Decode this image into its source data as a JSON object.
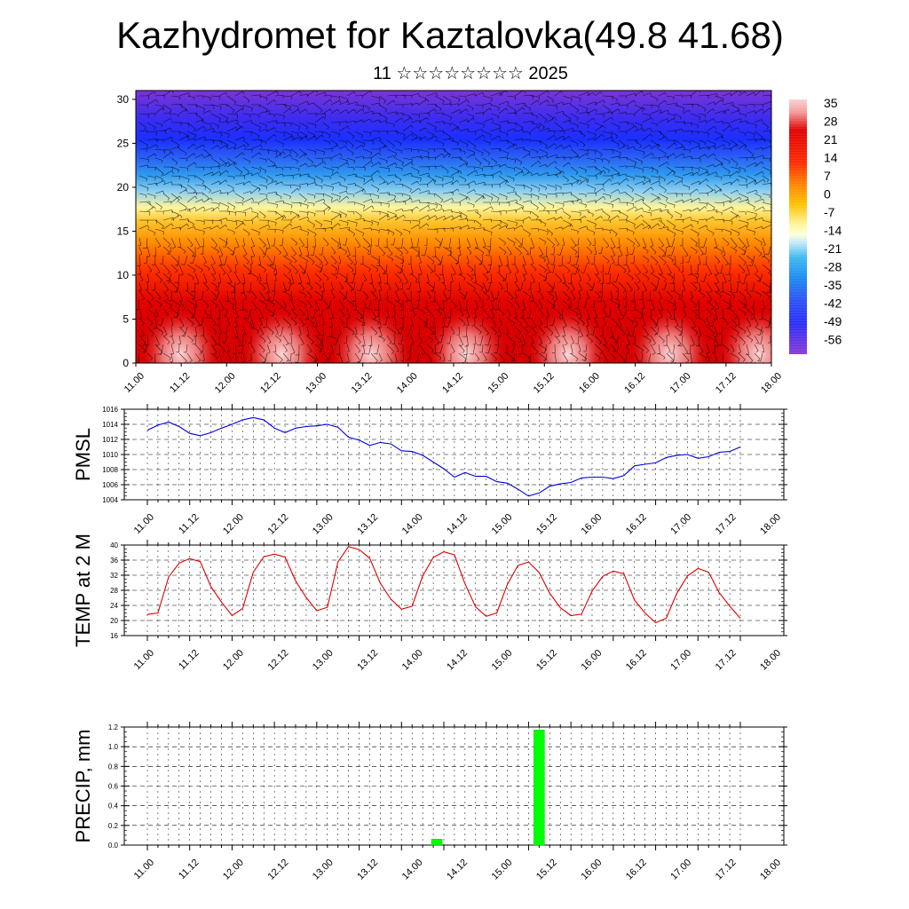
{
  "title": "Kazhydromet for Kaztalovka(49.8 41.68)",
  "subtitle": "11 ☆☆☆☆☆☆☆☆ 2025",
  "colors": {
    "pmsl_line": "#0000dd",
    "temp_line": "#dd0000",
    "precip_bar": "#00ff00",
    "frame": "#000000"
  },
  "chart_data": [
    {
      "type": "heatmap",
      "name": "cross-section",
      "x_ticks": [
        "11.00",
        "11.12",
        "12.00",
        "12.12",
        "13.00",
        "13.12",
        "14.00",
        "14.12",
        "15.00",
        "15.12",
        "16.00",
        "16.12",
        "17.00",
        "17.12",
        "18.00"
      ],
      "y_ticks": [
        "0",
        "5",
        "10",
        "15",
        "20",
        "25",
        "30"
      ],
      "ylim": [
        0,
        31
      ],
      "colorbar_labels": [
        "35",
        "28",
        "21",
        "14",
        "7",
        "0",
        "-7",
        "-14",
        "-21",
        "-28",
        "-35",
        "-42",
        "-49",
        "-56"
      ],
      "colorbar_range": [
        -63,
        42
      ],
      "wind_barbs": true
    },
    {
      "type": "line",
      "name": "pmsl",
      "ylabel": "PMSL",
      "ylim": [
        1004,
        1016
      ],
      "y_ticks": [
        "1016",
        "1014",
        "1012",
        "1010",
        "1008",
        "1006",
        "1004"
      ],
      "x_ticks": [
        "11.00",
        "11.12",
        "12.00",
        "12.12",
        "13.00",
        "13.12",
        "14.00",
        "14.12",
        "15.00",
        "15.12",
        "16.00",
        "16.12",
        "17.00",
        "17.12",
        "18.00"
      ],
      "grid": true,
      "values": [
        1013.2,
        1013.9,
        1014.3,
        1013.7,
        1012.8,
        1012.5,
        1012.9,
        1013.5,
        1014.0,
        1014.6,
        1014.9,
        1014.6,
        1013.5,
        1012.9,
        1013.5,
        1013.7,
        1013.8,
        1014.0,
        1013.6,
        1012.3,
        1011.9,
        1011.2,
        1011.6,
        1011.4,
        1010.5,
        1010.4,
        1009.9,
        1009.0,
        1008.1,
        1007.0,
        1007.6,
        1007.1,
        1007.1,
        1006.4,
        1006.2,
        1005.4,
        1004.5,
        1004.9,
        1005.8,
        1006.1,
        1006.3,
        1006.9,
        1007.0,
        1007.0,
        1006.8,
        1007.2,
        1008.5,
        1008.7,
        1008.9,
        1009.6,
        1009.9,
        1010.0,
        1009.5,
        1009.7,
        1010.3,
        1010.4,
        1011.0
      ]
    },
    {
      "type": "line",
      "name": "temp",
      "ylabel": "TEMP at 2 M",
      "ylim": [
        16,
        40
      ],
      "y_ticks": [
        "40",
        "36",
        "32",
        "28",
        "24",
        "20",
        "16"
      ],
      "x_ticks": [
        "11.00",
        "11.12",
        "12.00",
        "12.12",
        "13.00",
        "13.12",
        "14.00",
        "14.12",
        "15.00",
        "15.12",
        "16.00",
        "16.12",
        "17.00",
        "17.12",
        "18.00"
      ],
      "grid": true,
      "values": [
        21.6,
        22.0,
        31.5,
        35.2,
        36.4,
        35.6,
        29.0,
        24.9,
        21.3,
        23.2,
        32.8,
        36.9,
        37.6,
        36.8,
        30.5,
        26.1,
        22.6,
        23.5,
        35.5,
        39.6,
        38.8,
        36.5,
        29.9,
        25.6,
        23.0,
        23.8,
        31.8,
        36.7,
        38.2,
        37.4,
        29.7,
        23.6,
        21.1,
        22.0,
        29.6,
        34.6,
        35.5,
        32.7,
        27.2,
        23.4,
        21.3,
        21.7,
        27.8,
        31.7,
        33.1,
        32.4,
        25.4,
        22.0,
        19.4,
        20.6,
        27.2,
        31.8,
        33.8,
        32.8,
        27.4,
        23.8,
        20.6
      ]
    },
    {
      "type": "bar",
      "name": "precip",
      "ylabel": "PRECIP, mm",
      "ylim": [
        0,
        1.2
      ],
      "y_ticks": [
        "1.2",
        "1.0",
        "0.8",
        "0.6",
        "0.4",
        "0.2",
        "0.0"
      ],
      "x_ticks": [
        "11.00",
        "11.12",
        "12.00",
        "12.12",
        "13.00",
        "13.12",
        "14.00",
        "14.12",
        "15.00",
        "15.12",
        "16.00",
        "16.12",
        "17.00",
        "17.12",
        "18.00"
      ],
      "grid": true,
      "bars": [
        {
          "x": 14.1,
          "value": 0.06
        },
        {
          "x": 15.15,
          "value": 1.17
        }
      ]
    }
  ]
}
